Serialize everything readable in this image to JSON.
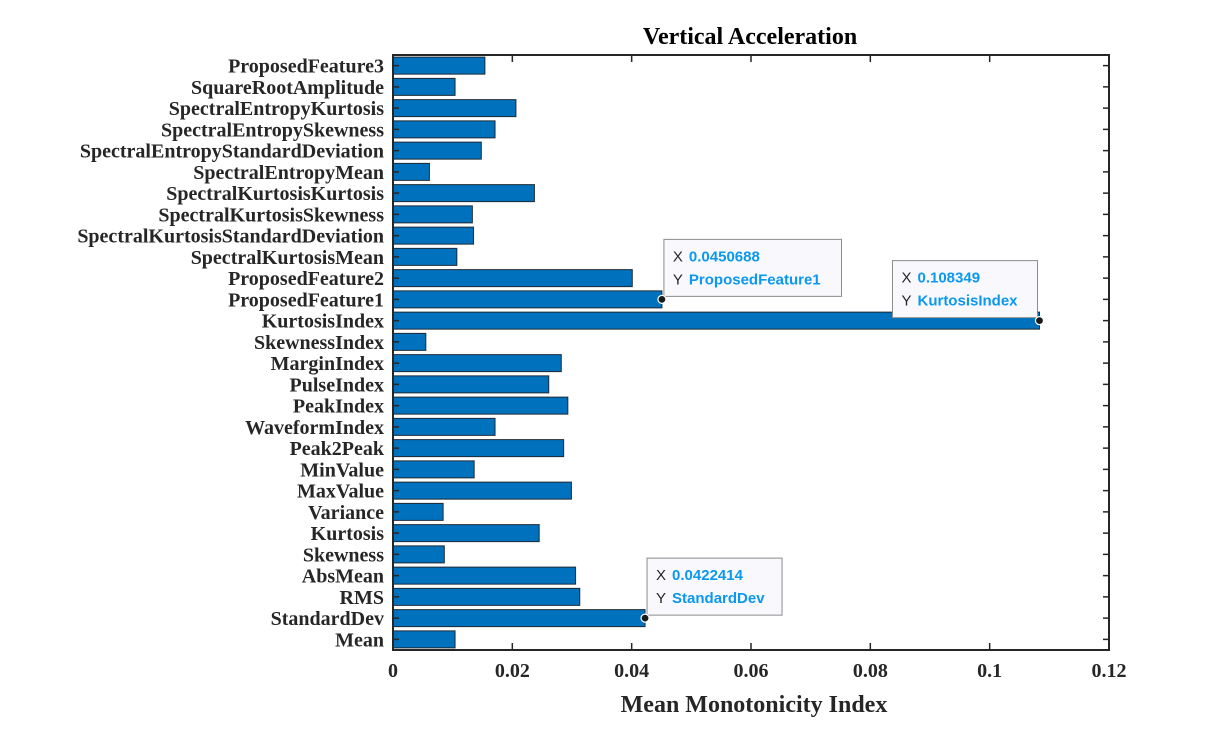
{
  "chart_data": {
    "type": "bar",
    "orientation": "horizontal",
    "title": "Vertical Acceleration",
    "xlabel": "Mean Monotonicity Index",
    "ylabel": "",
    "xlim": [
      0,
      0.12
    ],
    "x_ticks": [
      "0",
      "0.02",
      "0.04",
      "0.06",
      "0.08",
      "0.1",
      "0.12"
    ],
    "bar_color": "#0072bd",
    "grid": false,
    "categories": [
      "Mean",
      "StandardDev",
      "RMS",
      "AbsMean",
      "Skewness",
      "Kurtosis",
      "Variance",
      "MaxValue",
      "MinValue",
      "Peak2Peak",
      "WaveformIndex",
      "PeakIndex",
      "PulseIndex",
      "MarginIndex",
      "SkewnessIndex",
      "KurtosisIndex",
      "ProposedFeature1",
      "ProposedFeature2",
      "SpectralKurtosisMean",
      "SpectralKurtosisStandardDeviation",
      "SpectralKurtosisSkewness",
      "SpectralKurtosisKurtosis",
      "SpectralEntropyMean",
      "SpectralEntropyStandardDeviation",
      "SpectralEntropySkewness",
      "SpectralEntropyKurtosis",
      "SquareRootAmplitude",
      "ProposedFeature3"
    ],
    "values": [
      0.0104,
      0.0422414,
      0.0313,
      0.0306,
      0.0086,
      0.0245,
      0.0084,
      0.0299,
      0.0136,
      0.0286,
      0.0171,
      0.0293,
      0.0261,
      0.0282,
      0.0055,
      0.108349,
      0.0450688,
      0.0401,
      0.0107,
      0.0135,
      0.0133,
      0.0237,
      0.0061,
      0.0148,
      0.0171,
      0.0206,
      0.0104,
      0.0154
    ],
    "datatips": [
      {
        "category": "ProposedFeature1",
        "x_key": "X",
        "x_text": "0.0450688",
        "y_key": "Y",
        "y_text": "ProposedFeature1"
      },
      {
        "category": "KurtosisIndex",
        "x_key": "X",
        "x_text": "0.108349",
        "y_key": "Y",
        "y_text": "KurtosisIndex"
      },
      {
        "category": "StandardDev",
        "x_key": "X",
        "x_text": "0.0422414",
        "y_key": "Y",
        "y_text": "StandardDev"
      }
    ]
  }
}
